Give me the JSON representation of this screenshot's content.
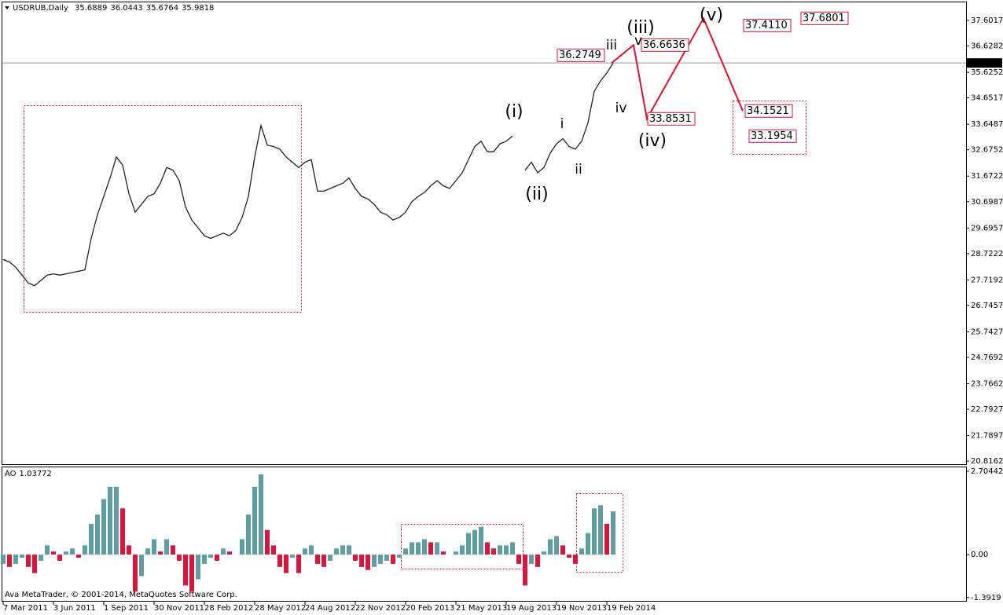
{
  "chart_data": [
    {
      "type": "line",
      "title": "USDRUB,Daily",
      "ohlc": [
        35.6889,
        36.0443,
        35.6764,
        35.9818
      ],
      "categories": [
        "7 Mar 2011",
        null,
        null,
        null,
        null,
        null,
        null,
        null,
        "3 Jun 2011",
        null,
        null,
        null,
        null,
        null,
        null,
        null,
        "1 Sep 2011",
        null,
        null,
        null,
        null,
        null,
        null,
        null,
        "30 Nov 2011",
        null,
        null,
        null,
        null,
        null,
        null,
        null,
        "28 Feb 2012",
        null,
        null,
        null,
        null,
        null,
        null,
        null,
        "28 May 2012",
        null,
        null,
        null,
        null,
        null,
        null,
        null,
        "24 Aug 2012",
        null,
        null,
        null,
        null,
        null,
        null,
        null,
        "22 Nov 2012",
        null,
        null,
        null,
        null,
        null,
        null,
        null,
        "20 Feb 2013",
        null,
        null,
        null,
        null,
        null,
        null,
        null,
        "21 May 2013",
        null,
        null,
        null,
        null,
        null,
        null,
        null,
        "19 Aug 2013",
        null,
        null,
        null,
        null,
        null,
        null,
        null,
        "19 Nov 2013",
        null,
        null,
        null,
        null,
        null,
        null,
        null,
        "19 Feb 2014",
        null
      ],
      "values": [
        28.5,
        28.4,
        28.2,
        27.9,
        27.6,
        27.5,
        27.7,
        27.9,
        27.95,
        27.9,
        27.95,
        28.0,
        28.05,
        28.1,
        29.3,
        30.2,
        30.9,
        31.6,
        32.4,
        32.1,
        31.0,
        30.3,
        30.6,
        30.9,
        31.0,
        31.4,
        32.0,
        31.9,
        31.5,
        30.5,
        30.0,
        29.7,
        29.4,
        29.3,
        29.4,
        29.5,
        29.4,
        29.6,
        30.1,
        30.9,
        32.4,
        33.6,
        32.85,
        32.8,
        32.7,
        32.4,
        32.2,
        32.0,
        32.2,
        32.3,
        31.1,
        31.1,
        31.2,
        31.3,
        31.4,
        31.6,
        31.2,
        30.9,
        30.8,
        30.6,
        30.3,
        30.2,
        30.0,
        30.1,
        30.3,
        30.7,
        30.9,
        31.05,
        31.3,
        31.5,
        31.3,
        31.2,
        31.5,
        31.8,
        32.3,
        32.8,
        33.0,
        32.6,
        32.6,
        32.9,
        33.0,
        33.2,
        null,
        31.9,
        32.2,
        31.8,
        32.0,
        32.55,
        32.9,
        33.1,
        32.8,
        32.7,
        33.0,
        33.7,
        34.9,
        35.3,
        35.6,
        35.98
      ],
      "color": "#222222",
      "ylim": [
        20.7,
        38.26
      ],
      "yticks": [
        37.6017,
        36.6282,
        35.6252,
        34.6517,
        33.6487,
        32.6752,
        31.6722,
        30.6987,
        29.6957,
        28.7222,
        27.7192,
        26.7457,
        25.7427,
        24.7692,
        23.7662,
        22.7927,
        21.7897,
        20.8162
      ],
      "wave_labels": [
        {
          "text": "(i)",
          "color": "#d2143a"
        },
        {
          "text": "(ii)",
          "color": "#d2143a"
        },
        {
          "text": "(iii)",
          "color": "#d2143a"
        },
        {
          "text": "(iv)",
          "color": "#d2143a"
        },
        {
          "text": "(v)",
          "color": "#d2143a"
        },
        {
          "text": "i",
          "color": "#1a1a7a"
        },
        {
          "text": "ii",
          "color": "#1a1a7a"
        },
        {
          "text": "iii",
          "color": "#1a1a7a"
        },
        {
          "text": "iv",
          "color": "#1a1a7a"
        },
        {
          "text": "v",
          "color": "#1a1a7a"
        }
      ],
      "levels": [
        36.2749,
        36.6636,
        33.8531,
        {
          "value": 37.411,
          "label": "37.4110"
        },
        37.6801,
        34.1521,
        33.1954
      ],
      "level_color": "#d2143a"
    },
    {
      "type": "histogram",
      "title": "AO",
      "current": 1.03772,
      "values": [
        -0.3,
        -0.4,
        -0.3,
        -0.1,
        -0.4,
        -0.6,
        -0.2,
        0.3,
        0.1,
        -0.2,
        0.1,
        0.2,
        -0.1,
        0.3,
        1.0,
        1.3,
        1.8,
        2.2,
        2.2,
        1.5,
        0.3,
        -1.2,
        -0.7,
        0.2,
        0.5,
        0.1,
        0.5,
        0.3,
        -0.2,
        -1.0,
        -1.2,
        -0.8,
        -0.3,
        -0.1,
        -0.2,
        0.2,
        0.1,
        0.0,
        0.5,
        1.3,
        2.2,
        2.6,
        0.8,
        0.3,
        -0.4,
        -0.6,
        -0.1,
        -0.6,
        0.2,
        0.3,
        -0.3,
        -0.4,
        -0.2,
        0.2,
        0.3,
        0.3,
        -0.2,
        -0.4,
        -0.5,
        -0.4,
        -0.3,
        -0.2,
        -0.3,
        -0.1,
        0.2,
        0.4,
        0.4,
        0.5,
        0.4,
        0.4,
        0.1,
        0.0,
        0.1,
        0.3,
        0.7,
        0.8,
        0.9,
        0.4,
        0.2,
        0.3,
        0.3,
        0.4,
        -0.3,
        -1.0,
        -0.3,
        -0.4,
        0.1,
        0.5,
        0.6,
        0.3,
        -0.1,
        -0.3,
        0.2,
        0.7,
        1.5,
        1.6,
        1.0,
        1.4
      ],
      "up_color": "#5f9ea0",
      "down_color": "#dc143c",
      "ylim": [
        -1.5,
        2.83
      ],
      "yticks": [
        2.70442,
        {
          "value": 0,
          "label": "0.00"
        },
        -1.3919
      ]
    }
  ],
  "footer": "Ava MetaTrader, © 2001-2014, MetaQuotes Software Corp."
}
